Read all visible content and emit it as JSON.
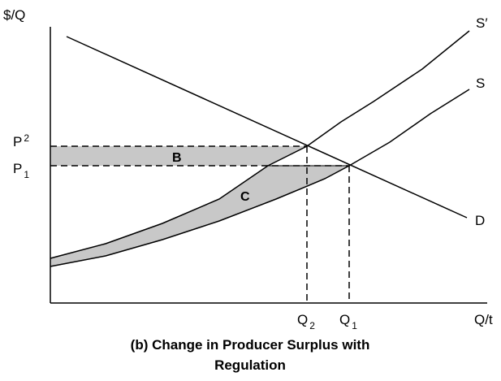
{
  "diagram": {
    "y_axis_label": "$/Q",
    "x_axis_label": "Q/t",
    "curves": {
      "s_prime": "S′",
      "s": "S",
      "d": "D"
    },
    "prices": [
      {
        "main": "P",
        "sub": "2"
      },
      {
        "main": "P",
        "sub": "1"
      }
    ],
    "quantities": [
      {
        "main": "Q",
        "sub": "2"
      },
      {
        "main": "Q",
        "sub": "1"
      }
    ],
    "areas": [
      "B",
      "C"
    ],
    "caption": [
      "(b) Change in Producer Surplus with",
      "Regulation"
    ]
  }
}
